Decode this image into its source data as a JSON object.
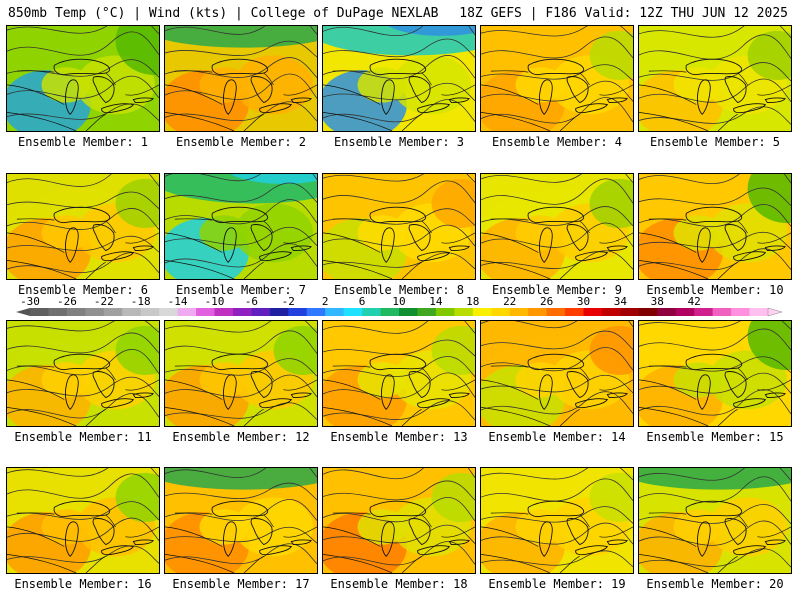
{
  "header": {
    "left": "850mb Temp (°C) | Wind (kts) | College of DuPage NEXLAB",
    "right": "18Z GEFS | F186 Valid: 12Z THU JUN 12 2025"
  },
  "panels": [
    {
      "label": "Ensemble Member: 1",
      "pattern": "cool-ne",
      "colors": [
        "#8fd400",
        "#c8e000",
        "#55b800",
        "#27a4d6"
      ]
    },
    {
      "label": "Ensemble Member: 2",
      "pattern": "cool-n",
      "colors": [
        "#e8c800",
        "#ffb000",
        "#2aa84a",
        "#ff8c00"
      ]
    },
    {
      "label": "Ensemble Member: 3",
      "pattern": "cold-n",
      "colors": [
        "#f2e600",
        "#d6e400",
        "#1fc9c0",
        "#2f8fe0"
      ]
    },
    {
      "label": "Ensemble Member: 4",
      "pattern": "warm",
      "colors": [
        "#ffc000",
        "#ffd800",
        "#b8dc00",
        "#ffa400"
      ]
    },
    {
      "label": "Ensemble Member: 5",
      "pattern": "warm",
      "colors": [
        "#d8e600",
        "#f0e400",
        "#9fd000",
        "#ffc000"
      ]
    },
    {
      "label": "Ensemble Member: 6",
      "pattern": "warm",
      "colors": [
        "#e0e000",
        "#ffc800",
        "#9fd000",
        "#ffa000"
      ]
    },
    {
      "label": "Ensemble Member: 7",
      "pattern": "cold-n",
      "colors": [
        "#b8dc00",
        "#8fd400",
        "#1fb86a",
        "#1fd0e0"
      ]
    },
    {
      "label": "Ensemble Member: 8",
      "pattern": "warm",
      "colors": [
        "#ffc400",
        "#ffdc00",
        "#ffa800",
        "#c8e000"
      ]
    },
    {
      "label": "Ensemble Member: 9",
      "pattern": "warm",
      "colors": [
        "#e8e600",
        "#ffcc00",
        "#9fd000",
        "#ffb000"
      ]
    },
    {
      "label": "Ensemble Member: 10",
      "pattern": "cool-ne",
      "colors": [
        "#ffc800",
        "#e0e000",
        "#55b800",
        "#ff8c00"
      ]
    },
    {
      "label": "Ensemble Member: 11",
      "pattern": "warm",
      "colors": [
        "#c8e000",
        "#ffd000",
        "#8fd400",
        "#ffb000"
      ]
    },
    {
      "label": "Ensemble Member: 12",
      "pattern": "warm",
      "colors": [
        "#d0e000",
        "#ffc800",
        "#8fd400",
        "#ffa000"
      ]
    },
    {
      "label": "Ensemble Member: 13",
      "pattern": "warm",
      "colors": [
        "#ffc800",
        "#e8e400",
        "#b8dc00",
        "#ff9c00"
      ]
    },
    {
      "label": "Ensemble Member: 14",
      "pattern": "warm",
      "colors": [
        "#ffb800",
        "#ffd400",
        "#ff9400",
        "#c8e000"
      ]
    },
    {
      "label": "Ensemble Member: 15",
      "pattern": "cool-ne",
      "colors": [
        "#ffd800",
        "#c8e000",
        "#55b800",
        "#ffb000"
      ]
    },
    {
      "label": "Ensemble Member: 16",
      "pattern": "warm",
      "colors": [
        "#e8e000",
        "#ffc000",
        "#8fd400",
        "#ff9c00"
      ]
    },
    {
      "label": "Ensemble Member: 17",
      "pattern": "cool-n",
      "colors": [
        "#ffc000",
        "#ffd800",
        "#2aa84a",
        "#ff8c00"
      ]
    },
    {
      "label": "Ensemble Member: 18",
      "pattern": "warm",
      "colors": [
        "#ffc000",
        "#e0e000",
        "#b8dc00",
        "#ff7c00"
      ]
    },
    {
      "label": "Ensemble Member: 19",
      "pattern": "warm",
      "colors": [
        "#f0e400",
        "#ffd400",
        "#c8e000",
        "#ffb000"
      ]
    },
    {
      "label": "Ensemble Member: 20",
      "pattern": "cool-n",
      "colors": [
        "#d8e400",
        "#ffd000",
        "#2aa84a",
        "#ffb000"
      ]
    }
  ],
  "colorbar": {
    "values": [
      "-30",
      "-26",
      "-22",
      "-18",
      "-14",
      "-10",
      "-6",
      "-2",
      "2",
      "6",
      "10",
      "14",
      "18",
      "22",
      "26",
      "30",
      "34",
      "38",
      "42"
    ],
    "colors": [
      "#606060",
      "#707070",
      "#808080",
      "#909090",
      "#a0a0a0",
      "#b8b8b8",
      "#c8c8c8",
      "#d8d8d8",
      "#f0a8f0",
      "#e060e0",
      "#c030c0",
      "#9020c0",
      "#6020c0",
      "#2020a0",
      "#2040e0",
      "#3078ff",
      "#30b8ff",
      "#20e0ff",
      "#20d0b0",
      "#20b860",
      "#109030",
      "#40a820",
      "#80c800",
      "#b8dc00",
      "#f8f000",
      "#ffd800",
      "#ffb800",
      "#ff9800",
      "#ff6c00",
      "#ff3c00",
      "#e80000",
      "#c00000",
      "#a00000",
      "#800000",
      "#900040",
      "#b00060",
      "#d02090",
      "#f060c0",
      "#ff90e0",
      "#ffc0f0"
    ]
  }
}
